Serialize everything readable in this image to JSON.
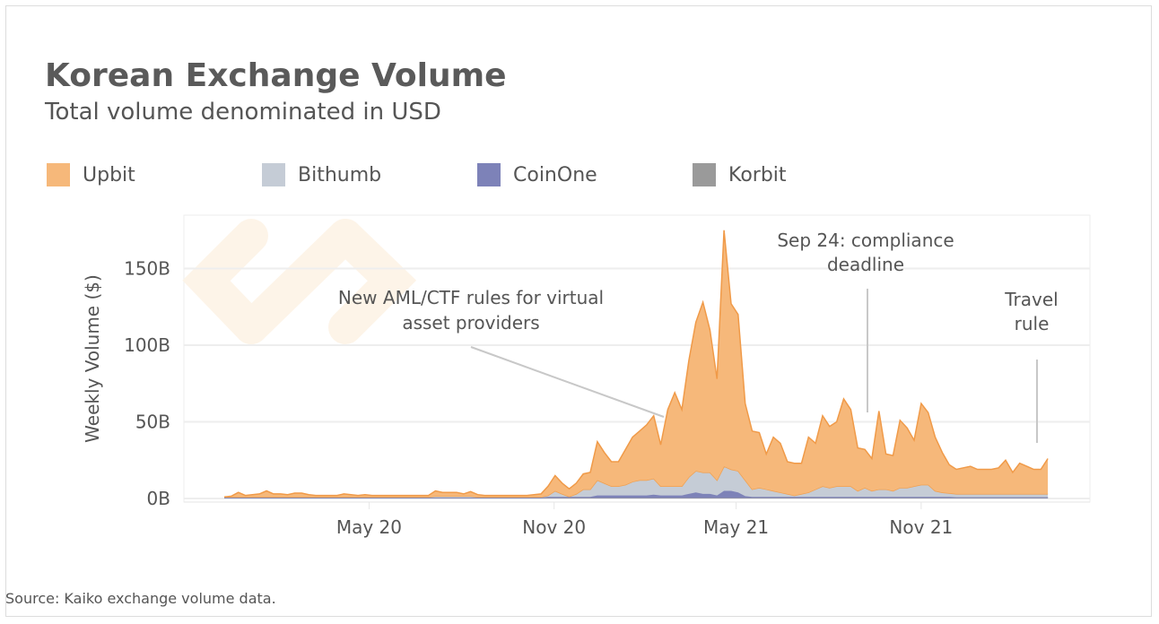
{
  "title": "Korean Exchange Volume",
  "subtitle": "Total volume denominated in USD",
  "source": "Source: Kaiko exchange volume data.",
  "colors": {
    "Upbit": "#f6b87a",
    "Bithumb": "#c5ccd6",
    "CoinOne": "#7d82b8",
    "Korbit": "#9a9a9a",
    "upbit_line": "#f09a48"
  },
  "chart_data": {
    "type": "area",
    "stacked": true,
    "title": "Korean Exchange Volume",
    "subtitle": "Total volume denominated in USD",
    "xlabel": "",
    "ylabel": "Weekly Volume ($)",
    "x_start": "2019-12-09",
    "x_step_days": 7,
    "x_ticks": [
      {
        "date": "2020-05-01",
        "label": "May 20"
      },
      {
        "date": "2020-11-01",
        "label": "Nov 20"
      },
      {
        "date": "2021-05-01",
        "label": "May 21"
      },
      {
        "date": "2021-11-01",
        "label": "Nov 21"
      }
    ],
    "y_ticks": [
      {
        "value": 0,
        "label": "0B"
      },
      {
        "value": 50,
        "label": "50B"
      },
      {
        "value": 100,
        "label": "100B"
      },
      {
        "value": 150,
        "label": "150B"
      }
    ],
    "ylim": [
      0,
      185
    ],
    "y_unit": "billion USD",
    "grid": "horizontal",
    "legend_position": "top-left",
    "series": [
      {
        "name": "Korbit",
        "values": [
          0.3,
          0.3,
          0.3,
          0.3,
          0.3,
          0.3,
          0.3,
          0.3,
          0.3,
          0.3,
          0.3,
          0.3,
          0.3,
          0.3,
          0.3,
          0.3,
          0.3,
          0.3,
          0.3,
          0.3,
          0.3,
          0.3,
          0.3,
          0.3,
          0.3,
          0.3,
          0.3,
          0.3,
          0.3,
          0.3,
          0.3,
          0.3,
          0.3,
          0.3,
          0.3,
          0.3,
          0.3,
          0.3,
          0.3,
          0.3,
          0.3,
          0.3,
          0.3,
          0.3,
          0.3,
          0.3,
          0.3,
          0.3,
          0.3,
          0.3,
          0.3,
          0.3,
          0.3,
          0.3,
          0.3,
          0.3,
          0.3,
          0.3,
          0.3,
          0.3,
          0.3,
          0.3,
          0.3,
          0.3,
          0.3,
          0.3,
          0.3,
          0.3,
          0.3,
          0.3,
          0.3,
          0.3,
          0.3,
          0.3,
          0.3,
          0.3,
          0.3,
          0.3,
          0.3,
          0.3,
          0.3,
          0.3,
          0.3,
          0.3,
          0.3,
          0.3,
          0.3,
          0.3,
          0.3,
          0.3,
          0.3,
          0.3,
          0.3,
          0.3,
          0.3,
          0.3,
          0.3,
          0.3,
          0.3,
          0.3,
          0.3,
          0.3,
          0.3,
          0.3,
          0.3,
          0.3,
          0.3,
          0.3,
          0.3,
          0.3,
          0.3,
          0.3,
          0.3,
          0.3,
          0.3,
          0.3,
          0.3,
          0.3
        ]
      },
      {
        "name": "CoinOne",
        "values": [
          0.3,
          0.3,
          0.3,
          0.3,
          0.3,
          0.3,
          0.3,
          0.3,
          0.3,
          0.3,
          0.3,
          0.3,
          0.3,
          0.3,
          0.3,
          0.3,
          0.3,
          0.3,
          0.3,
          0.3,
          0.3,
          0.3,
          0.3,
          0.3,
          0.3,
          0.3,
          0.3,
          0.3,
          0.3,
          0.3,
          0.3,
          0.3,
          0.3,
          0.3,
          0.3,
          0.3,
          0.3,
          0.3,
          0.3,
          0.3,
          0.3,
          0.3,
          0.3,
          0.3,
          0.3,
          0.3,
          0.7,
          0.7,
          0.7,
          0.7,
          0.7,
          0.7,
          0.7,
          1.7,
          1.7,
          1.7,
          1.7,
          1.7,
          1.7,
          1.7,
          1.7,
          2.2,
          1.7,
          1.7,
          1.7,
          1.7,
          2.7,
          3.7,
          2.7,
          2.7,
          1.7,
          4.7,
          4.7,
          3.7,
          1.2,
          0.7,
          0.7,
          0.7,
          0.7,
          0.7,
          0.7,
          0.7,
          0.7,
          0.7,
          0.7,
          0.7,
          0.7,
          0.7,
          0.7,
          0.7,
          0.7,
          0.7,
          0.7,
          0.7,
          0.7,
          0.7,
          0.7,
          0.7,
          0.7,
          0.7,
          0.7,
          0.7,
          0.7,
          0.7,
          0.5,
          0.5,
          0.5,
          0.5,
          0.5,
          0.5,
          0.5,
          0.5,
          0.5,
          0.5,
          0.5,
          0.5,
          0.5,
          0.5
        ]
      },
      {
        "name": "Bithumb",
        "values": [
          0.4,
          0.4,
          0.4,
          0.4,
          0.4,
          0.4,
          0.4,
          0.4,
          0.4,
          0.4,
          0.4,
          0.4,
          0.4,
          0.4,
          0.4,
          0.4,
          0.4,
          0.4,
          0.4,
          0.4,
          0.4,
          0.4,
          0.4,
          0.4,
          0.4,
          0.4,
          0.4,
          0.4,
          0.4,
          0.4,
          0.9,
          0.9,
          0.9,
          0.9,
          0.9,
          0.9,
          0.4,
          0.4,
          0.4,
          0.4,
          0.4,
          0.4,
          0.4,
          0.4,
          0.4,
          0.4,
          1,
          4,
          2,
          0.3,
          2,
          5,
          5,
          10,
          8,
          6,
          6,
          7,
          9,
          10,
          10,
          10.5,
          6,
          6,
          6,
          6,
          11,
          14,
          14,
          14,
          10,
          16,
          14,
          14,
          10.5,
          5,
          6,
          5,
          4,
          3,
          2,
          1,
          2,
          3,
          5,
          7,
          6,
          7,
          7,
          7,
          4,
          6,
          4,
          5,
          5,
          4,
          6,
          6,
          7,
          8,
          8,
          4,
          3,
          2.5,
          2.2,
          2.2,
          2.2,
          2.2,
          2.2,
          2.2,
          2.2,
          2.2,
          2.2,
          2.2,
          2.2,
          2.2,
          2.2,
          2.2
        ]
      },
      {
        "name": "Upbit",
        "values": [
          0,
          0.5,
          3,
          1,
          1.5,
          2,
          4,
          2,
          2,
          1.5,
          2.5,
          2.5,
          1.5,
          1,
          1,
          1,
          1,
          2,
          1.5,
          1,
          1.5,
          1,
          1,
          1,
          1,
          1,
          1,
          1,
          1,
          1,
          3.5,
          2.5,
          2.5,
          2.5,
          1.5,
          3,
          1.5,
          1,
          1,
          1,
          1,
          1,
          1,
          1,
          1.5,
          2,
          6,
          10,
          7,
          5,
          7,
          10,
          11,
          25,
          20,
          16,
          16,
          23,
          29,
          32,
          36,
          41,
          27,
          50,
          61,
          50,
          76,
          97,
          111,
          93,
          66,
          154,
          108,
          102,
          50,
          38,
          36,
          23,
          35,
          32,
          21,
          21,
          20,
          36,
          30,
          46,
          40,
          42,
          57,
          50,
          28,
          25,
          21,
          51,
          23,
          23,
          44,
          39,
          30,
          53,
          47,
          35,
          26,
          18.5,
          16,
          17,
          18,
          16,
          16,
          16,
          17,
          22,
          14,
          20,
          18,
          16,
          16,
          23
        ]
      }
    ],
    "legend": [
      "Upbit",
      "Bithumb",
      "CoinOne",
      "Korbit"
    ],
    "annotations": [
      {
        "text_lines": [
          "New AML/CTF rules for virtual",
          "asset providers"
        ],
        "date": "2021-03-25"
      },
      {
        "text_lines": [
          "Sep 24:  compliance",
          "deadline"
        ],
        "date": "2021-09-24"
      },
      {
        "text_lines": [
          "Travel",
          "rule"
        ],
        "date": "2022-03-25"
      }
    ]
  }
}
